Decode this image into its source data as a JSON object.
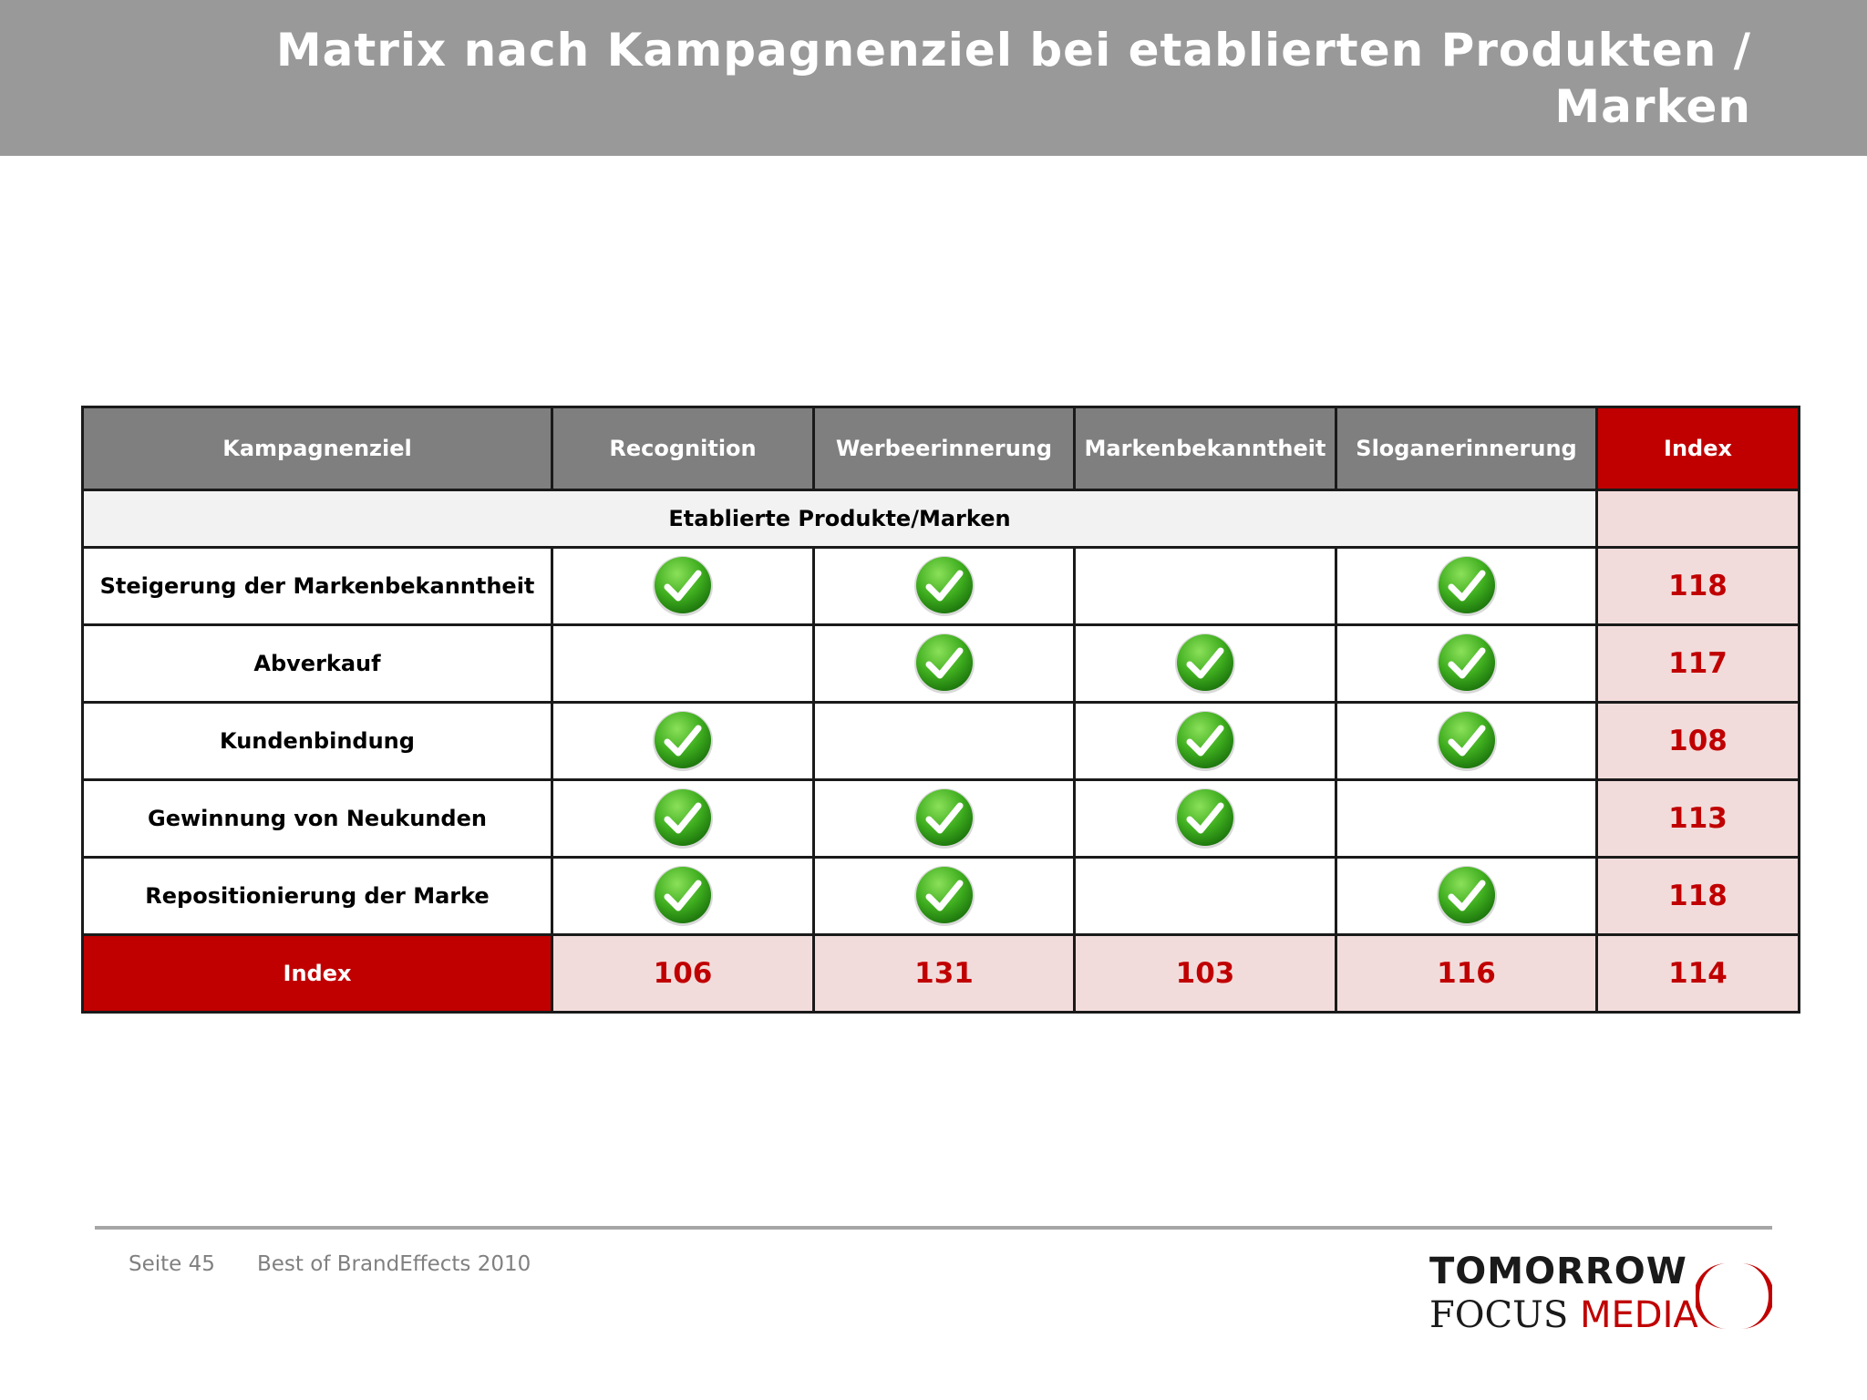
{
  "header": {
    "title_line1": "Matrix nach Kampagnenziel bei etablierten Produkten /",
    "title_line2": "Marken"
  },
  "table": {
    "columns": [
      "Kampagnenziel",
      "Recognition",
      "Werbeerinnerung",
      "Markenbekanntheit",
      "Sloganerinnerung",
      "Index"
    ],
    "group_label": "Etablierte Produkte/Marken",
    "rows": [
      {
        "label": "Steigerung der Markenbekanntheit",
        "checks": [
          true,
          true,
          false,
          true
        ],
        "index": "118"
      },
      {
        "label": "Abverkauf",
        "checks": [
          false,
          true,
          true,
          true
        ],
        "index": "117"
      },
      {
        "label": "Kundenbindung",
        "checks": [
          true,
          false,
          true,
          true
        ],
        "index": "108"
      },
      {
        "label": "Gewinnung von Neukunden",
        "checks": [
          true,
          true,
          true,
          false
        ],
        "index": "113"
      },
      {
        "label": "Repositionierung der Marke",
        "checks": [
          true,
          true,
          false,
          true
        ],
        "index": "118"
      }
    ],
    "footer": {
      "label": "Index",
      "values": [
        "106",
        "131",
        "103",
        "116",
        "114"
      ]
    },
    "colors": {
      "header_gray": "#7f7f7f",
      "accent_red": "#c00000",
      "index_pink": "#f2dcdb",
      "check_green": "#3fae1f"
    }
  },
  "footer": {
    "page_label": "Seite 45",
    "doc_title": "Best of BrandEffects 2010"
  },
  "logo": {
    "line1": "TOMORROW",
    "line2_a": "FOCUS",
    "line2_b": "MEDIA"
  },
  "icons": {
    "check": "check-icon",
    "logo_mark": "logo-ring-icon"
  }
}
